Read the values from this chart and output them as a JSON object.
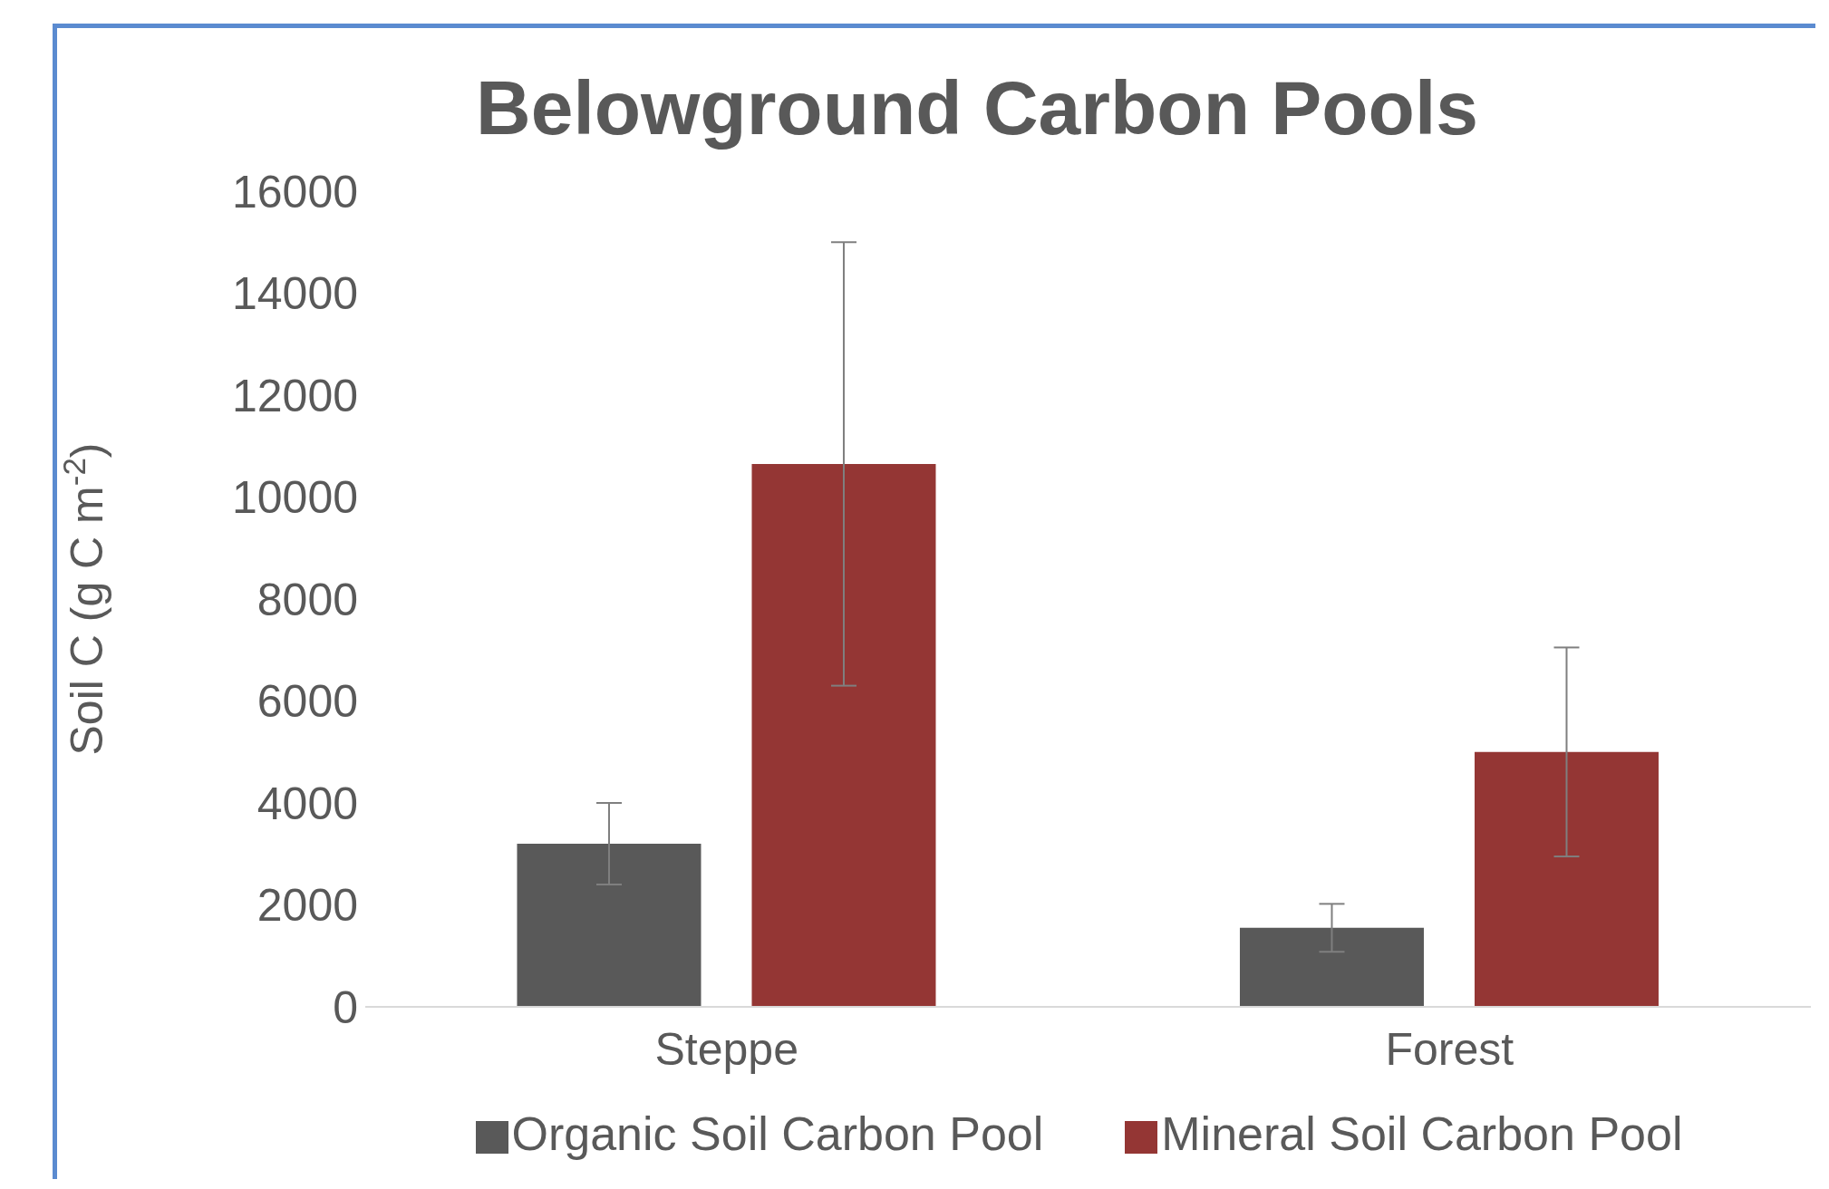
{
  "chart_data": {
    "type": "bar",
    "title": "Belowground Carbon Pools",
    "ylabel": "Soil C (g C m$^{-2}$)",
    "categories": [
      "Steppe",
      "Forest"
    ],
    "series": [
      {
        "name": "Organic Soil Carbon Pool",
        "color": "#595959",
        "values": [
          3200,
          1550
        ],
        "errors": [
          800,
          470
        ]
      },
      {
        "name": "Mineral Soil Carbon Pool",
        "color": "#943634",
        "values": [
          10650,
          5000
        ],
        "errors": [
          4350,
          2050
        ]
      }
    ],
    "ylim": [
      0,
      16000
    ],
    "yticks": [
      0,
      2000,
      4000,
      6000,
      8000,
      10000,
      12000,
      14000,
      16000
    ],
    "legend": "bottom"
  }
}
